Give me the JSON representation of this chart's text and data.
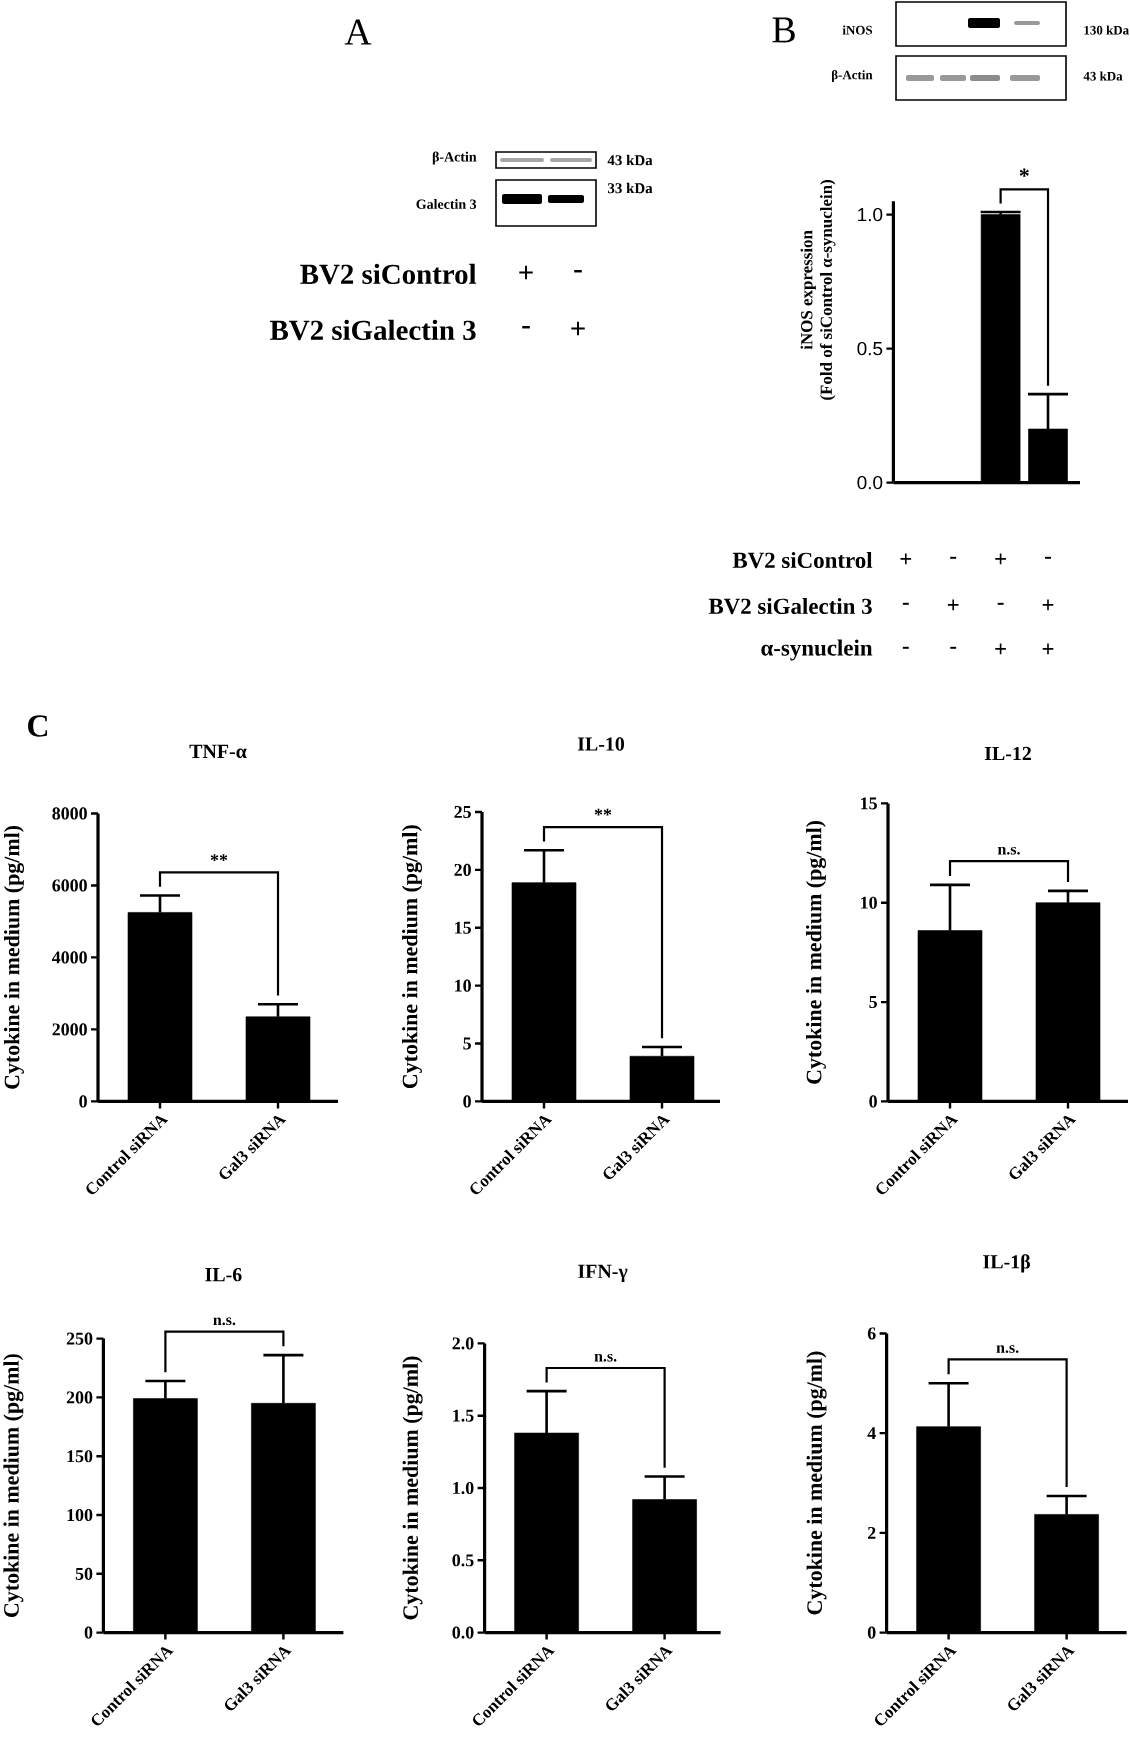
{
  "chart_data": [
    {
      "type": "other",
      "title": "A",
      "annotations": [
        "β-Actin",
        "43 kDa",
        "Galectin 3",
        "33 kDa",
        "BV2 siControl",
        "+",
        "-",
        "BV2 siGalectin 3",
        "-",
        "+"
      ]
    },
    {
      "type": "other",
      "title": "B",
      "annotations": [
        "iNOS",
        "130 kDa",
        "β-Actin",
        "43 kDa"
      ]
    },
    {
      "type": "bar",
      "ylabel": "iNOS expression\n(Fold of siControl α-synuclein)",
      "categories": [
        null,
        null,
        null,
        null
      ],
      "values": [
        null,
        null,
        1.0,
        0.2
      ],
      "errors": [
        null,
        null,
        0.01,
        0.13
      ],
      "color": "#000000",
      "ylim": [
        0,
        1.05
      ],
      "yticks": [
        {
          "value": 0,
          "label": "0.0"
        },
        0.5,
        {
          "value": 1,
          "label": "1.0"
        }
      ],
      "annotations": [
        "*",
        "BV2 siControl",
        "+",
        "-",
        "+",
        "-",
        "BV2 siGalectin 3",
        "-",
        "+",
        "-",
        "+",
        "α-synuclein",
        "-",
        "-",
        "+",
        "+"
      ]
    },
    {
      "type": "bar",
      "title": "TNF-α",
      "ylabel": "Cytokine in medium (pg/ml)",
      "categories": [
        "Control siRNA",
        "Gal3 siRNA"
      ],
      "values": [
        5250,
        2350
      ],
      "errors": [
        470,
        350
      ],
      "color": "#000000",
      "ylim": [
        0,
        8000
      ],
      "yticks": [
        0,
        2000,
        4000,
        6000,
        8000
      ],
      "annotations": [
        "**",
        "C"
      ]
    },
    {
      "type": "bar",
      "title": "IL-10",
      "ylabel": "Cytokine in medium (pg/ml)",
      "categories": [
        "Control siRNA",
        "Gal3 siRNA"
      ],
      "values": [
        18.9,
        3.9
      ],
      "errors": [
        2.8,
        0.8
      ],
      "color": "#000000",
      "ylim": [
        0,
        25
      ],
      "yticks": [
        0,
        5,
        10,
        15,
        20,
        25
      ],
      "annotations": [
        "**"
      ]
    },
    {
      "type": "bar",
      "title": "IL-12",
      "ylabel": "Cytokine in medium (pg/ml)",
      "categories": [
        "Control siRNA",
        "Gal3 siRNA"
      ],
      "values": [
        8.6,
        10.0
      ],
      "errors": [
        2.3,
        0.6
      ],
      "color": "#000000",
      "ylim": [
        0,
        15
      ],
      "yticks": [
        0,
        5,
        10,
        15
      ],
      "annotations": [
        "n.s."
      ]
    },
    {
      "type": "bar",
      "title": "IL-6",
      "ylabel": "Cytokine in medium (pg/ml)",
      "categories": [
        "Control siRNA",
        "Gal3 siRNA"
      ],
      "values": [
        199,
        195
      ],
      "errors": [
        15,
        41
      ],
      "color": "#000000",
      "ylim": [
        0,
        250
      ],
      "yticks": [
        0,
        50,
        100,
        150,
        200,
        250
      ],
      "annotations": [
        "n.s."
      ]
    },
    {
      "type": "bar",
      "title": "IFN-γ",
      "ylabel": "Cytokine in medium (pg/ml)",
      "categories": [
        "Control siRNA",
        "Gal3 siRNA"
      ],
      "values": [
        1.38,
        0.92
      ],
      "errors": [
        0.29,
        0.16
      ],
      "color": "#000000",
      "ylim": [
        0,
        2
      ],
      "yticks": [
        {
          "value": 0,
          "label": "0.0"
        },
        0.5,
        {
          "value": 1,
          "label": "1.0"
        },
        1.5,
        {
          "value": 2,
          "label": "2.0"
        }
      ],
      "annotations": [
        "n.s."
      ]
    },
    {
      "type": "bar",
      "title": "IL-1β",
      "ylabel": "Cytokine in medium (pg/ml)",
      "categories": [
        "Control siRNA",
        "Gal3 siRNA"
      ],
      "values": [
        4.13,
        2.37
      ],
      "errors": [
        0.87,
        0.37
      ],
      "color": "#000000",
      "ylim": [
        0,
        6
      ],
      "yticks": [
        0,
        2,
        4,
        6
      ],
      "annotations": [
        "n.s."
      ]
    }
  ]
}
